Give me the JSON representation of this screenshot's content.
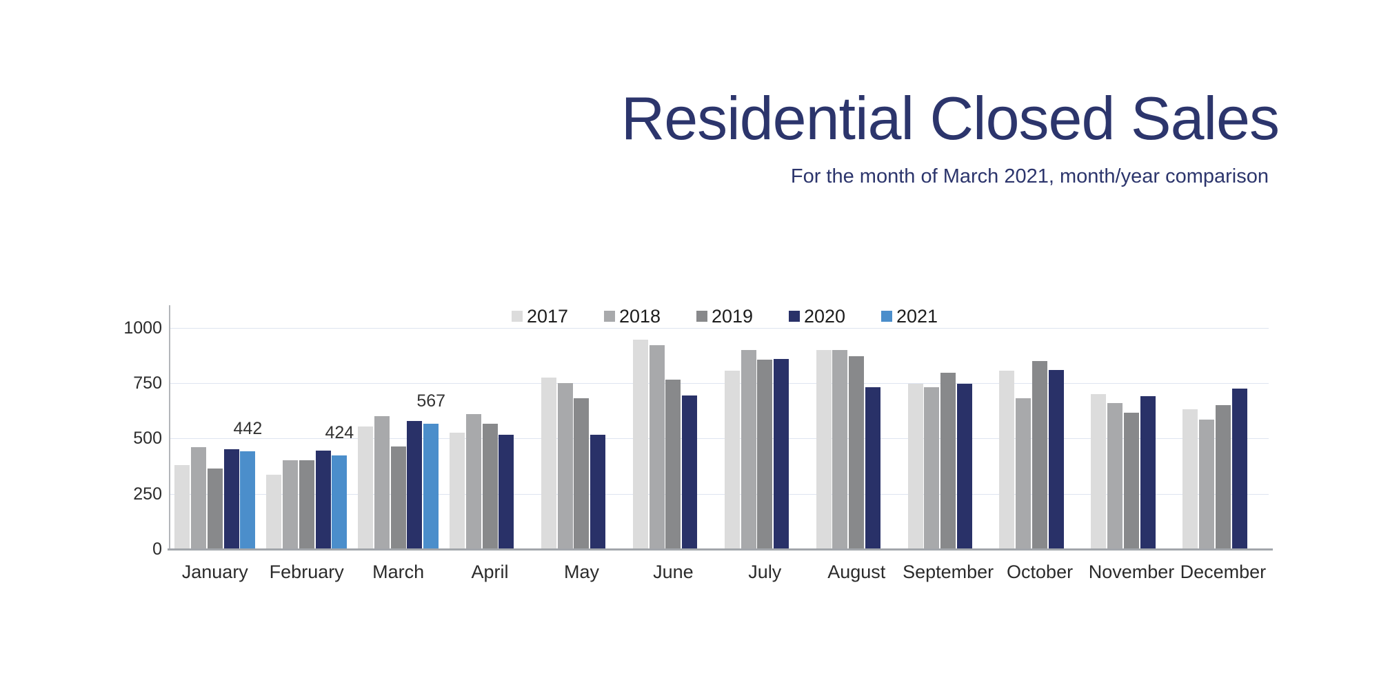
{
  "header": {
    "title": "Residential Closed Sales",
    "subtitle": "For the month of March 2021, month/year comparison",
    "title_color": "#2c356c",
    "subtitle_color": "#2c356c"
  },
  "chart_data": {
    "type": "bar",
    "title": "Residential Closed Sales",
    "subtitle": "For the month of March 2021, month/year comparison",
    "categories": [
      "January",
      "February",
      "March",
      "April",
      "May",
      "June",
      "July",
      "August",
      "September",
      "October",
      "November",
      "December"
    ],
    "series": [
      {
        "name": "2017",
        "color": "#dcdcdc",
        "values": [
          380,
          335,
          555,
          525,
          775,
          945,
          805,
          900,
          745,
          805,
          700,
          630
        ]
      },
      {
        "name": "2018",
        "color": "#a8a9ab",
        "values": [
          460,
          400,
          600,
          610,
          750,
          920,
          900,
          900,
          730,
          680,
          660,
          585
        ]
      },
      {
        "name": "2019",
        "color": "#88898b",
        "values": [
          365,
          400,
          465,
          565,
          680,
          765,
          855,
          870,
          795,
          850,
          615,
          650
        ]
      },
      {
        "name": "2020",
        "color": "#293168",
        "values": [
          450,
          445,
          578,
          515,
          515,
          695,
          860,
          730,
          745,
          808,
          690,
          725
        ]
      },
      {
        "name": "2021",
        "color": "#4b8ecb",
        "values": [
          442,
          424,
          567,
          null,
          null,
          null,
          null,
          null,
          null,
          null,
          null,
          null
        ]
      }
    ],
    "data_labels": [
      {
        "series": "2021",
        "month": "January",
        "text": "442"
      },
      {
        "series": "2021",
        "month": "February",
        "text": "424"
      },
      {
        "series": "2021",
        "month": "March",
        "text": "567"
      }
    ],
    "yticks": [
      0,
      250,
      500,
      750,
      1000
    ],
    "ylim": [
      0,
      1000
    ],
    "grid": true,
    "legend_position": "top-center",
    "colors": {
      "gridline": "#dee4f0",
      "y_axis_line": "#b3b6ba",
      "x_axis_line": "#a2a6ab",
      "tick_label": "#2b2b2b",
      "month_label": "#2b2b2b",
      "value_label": "#333333"
    }
  }
}
